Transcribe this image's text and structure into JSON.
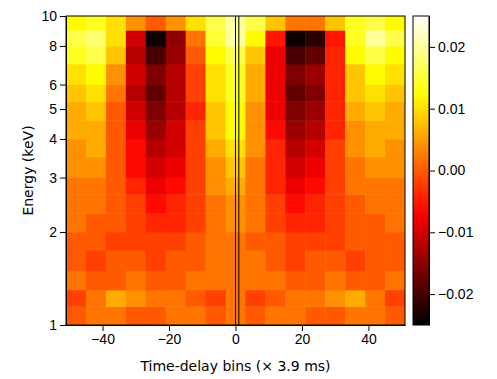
{
  "chart_data": {
    "type": "heatmap",
    "x_label": "Time-delay bins (× 3.9 ms)",
    "y_label": "Energy (keV)",
    "log": "y",
    "xlim": [
      -51,
      51
    ],
    "ylim": [
      1,
      10
    ],
    "xticks": [
      {
        "value": -40,
        "label": "−40"
      },
      {
        "value": -20,
        "label": "−20"
      },
      0,
      20,
      40
    ],
    "yticks": [
      1,
      2,
      3,
      4,
      5,
      6,
      8,
      10
    ],
    "x_edges": [
      -51,
      -45,
      -39,
      -33,
      -27,
      -21,
      -15,
      -9,
      -3,
      3,
      9,
      15,
      21,
      27,
      33,
      39,
      45,
      51
    ],
    "y_edges": [
      1,
      1.15,
      1.3,
      1.5,
      1.75,
      2,
      2.3,
      2.65,
      3,
      3.5,
      4,
      4.6,
      5.3,
      6,
      7,
      8,
      9,
      10
    ],
    "vlines": [
      0,
      1
    ],
    "zlim": [
      -0.025,
      0.025
    ],
    "zticks": [
      {
        "value": -0.02,
        "label": "−0.02"
      },
      {
        "value": -0.01,
        "label": "−0.01"
      },
      {
        "value": 0,
        "label": "0.00"
      },
      0.01,
      0.02
    ],
    "values": [
      [
        0.0,
        0.002,
        0.002,
        0.0,
        0.0,
        0.002,
        0.002,
        0.0,
        0.002,
        0.0,
        0.002,
        0.002,
        0.0,
        0.0,
        0.002,
        0.002,
        0.0
      ],
      [
        -0.002,
        0.002,
        0.006,
        0.004,
        0.002,
        0.002,
        0.0,
        -0.002,
        0.002,
        -0.002,
        0.0,
        0.002,
        0.002,
        0.004,
        0.006,
        0.002,
        -0.002
      ],
      [
        0.002,
        0.0,
        0.0,
        0.002,
        0.0,
        0.0,
        0.002,
        0.002,
        0.002,
        0.002,
        0.002,
        0.0,
        0.0,
        0.002,
        0.0,
        0.0,
        0.002
      ],
      [
        0.0,
        -0.002,
        0.0,
        0.0,
        -0.002,
        0.0,
        0.0,
        0.002,
        0.002,
        0.002,
        0.0,
        -0.002,
        0.0,
        0.0,
        -0.002,
        0.0,
        0.0
      ],
      [
        0.0,
        0.0,
        -0.002,
        -0.002,
        -0.002,
        -0.002,
        0.0,
        0.002,
        0.002,
        0.0,
        0.0,
        -0.002,
        -0.002,
        -0.002,
        0.0,
        0.0,
        0.0
      ],
      [
        0.002,
        0.0,
        0.0,
        -0.002,
        -0.004,
        -0.004,
        -0.002,
        0.002,
        0.004,
        0.002,
        -0.002,
        -0.004,
        -0.004,
        -0.002,
        0.0,
        0.0,
        0.002
      ],
      [
        0.002,
        0.002,
        0.0,
        -0.002,
        -0.006,
        -0.004,
        -0.002,
        0.002,
        0.004,
        0.002,
        -0.002,
        -0.006,
        -0.004,
        -0.002,
        0.0,
        0.002,
        0.002
      ],
      [
        0.002,
        0.002,
        0.0,
        -0.004,
        -0.008,
        -0.006,
        -0.002,
        0.004,
        0.006,
        0.002,
        -0.004,
        -0.008,
        -0.006,
        -0.002,
        0.002,
        0.002,
        0.002
      ],
      [
        0.004,
        0.004,
        0.0,
        -0.006,
        -0.01,
        -0.008,
        -0.002,
        0.004,
        0.008,
        0.002,
        -0.004,
        -0.01,
        -0.008,
        -0.002,
        0.002,
        0.004,
        0.004
      ],
      [
        0.004,
        0.006,
        0.0,
        -0.006,
        -0.012,
        -0.01,
        -0.002,
        0.006,
        0.01,
        0.004,
        -0.004,
        -0.012,
        -0.01,
        -0.002,
        0.004,
        0.006,
        0.004
      ],
      [
        0.006,
        0.006,
        0.0,
        -0.008,
        -0.014,
        -0.01,
        -0.002,
        0.008,
        0.012,
        0.004,
        -0.006,
        -0.014,
        -0.012,
        -0.004,
        0.004,
        0.006,
        0.006
      ],
      [
        0.006,
        0.008,
        0.0,
        -0.01,
        -0.016,
        -0.012,
        -0.004,
        0.008,
        0.012,
        0.004,
        -0.008,
        -0.016,
        -0.014,
        -0.004,
        0.006,
        0.008,
        0.006
      ],
      [
        0.008,
        0.01,
        0.002,
        -0.012,
        -0.018,
        -0.012,
        -0.002,
        0.01,
        0.014,
        0.006,
        -0.008,
        -0.018,
        -0.016,
        -0.004,
        0.008,
        0.01,
        0.008
      ],
      [
        0.01,
        0.012,
        0.004,
        -0.01,
        -0.016,
        -0.012,
        -0.002,
        0.01,
        0.014,
        0.006,
        -0.008,
        -0.016,
        -0.014,
        -0.004,
        0.008,
        0.012,
        0.01
      ],
      [
        0.014,
        0.016,
        0.008,
        -0.012,
        -0.02,
        -0.014,
        0.0,
        0.012,
        0.016,
        0.008,
        -0.008,
        -0.02,
        -0.018,
        -0.004,
        0.012,
        0.016,
        0.012
      ],
      [
        0.016,
        0.018,
        0.01,
        -0.01,
        -0.024,
        -0.015,
        0.002,
        0.015,
        0.02,
        0.012,
        -0.005,
        -0.024,
        -0.022,
        -0.005,
        0.014,
        0.02,
        0.016
      ],
      [
        0.012,
        0.014,
        0.01,
        0.004,
        0.0,
        0.004,
        0.01,
        0.016,
        0.02,
        0.016,
        0.008,
        0.002,
        0.002,
        0.008,
        0.014,
        0.016,
        0.012
      ]
    ]
  }
}
